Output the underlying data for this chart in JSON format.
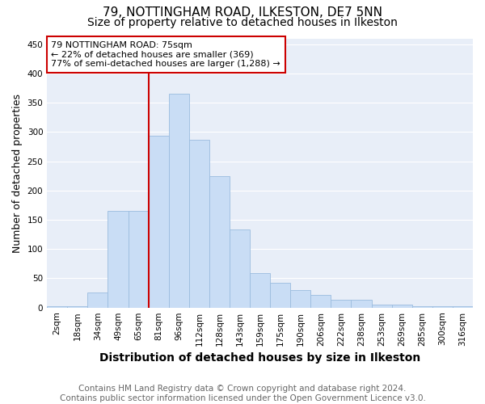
{
  "title": "79, NOTTINGHAM ROAD, ILKESTON, DE7 5NN",
  "subtitle": "Size of property relative to detached houses in Ilkeston",
  "xlabel": "Distribution of detached houses by size in Ilkeston",
  "ylabel": "Number of detached properties",
  "categories": [
    "2sqm",
    "18sqm",
    "34sqm",
    "49sqm",
    "65sqm",
    "81sqm",
    "96sqm",
    "112sqm",
    "128sqm",
    "143sqm",
    "159sqm",
    "175sqm",
    "190sqm",
    "206sqm",
    "222sqm",
    "238sqm",
    "253sqm",
    "269sqm",
    "285sqm",
    "300sqm",
    "316sqm"
  ],
  "values": [
    2,
    2,
    26,
    165,
    165,
    293,
    365,
    287,
    225,
    133,
    59,
    42,
    30,
    22,
    13,
    13,
    5,
    5,
    2,
    2,
    2
  ],
  "bar_color": "#c9ddf5",
  "bar_edge_color": "#9bbcdf",
  "vline_x_index": 4.5,
  "vline_color": "#cc0000",
  "annotation_text": "79 NOTTINGHAM ROAD: 75sqm\n← 22% of detached houses are smaller (369)\n77% of semi-detached houses are larger (1,288) →",
  "annotation_box_color": "#ffffff",
  "annotation_box_edge_color": "#cc0000",
  "ylim": [
    0,
    460
  ],
  "yticks": [
    0,
    50,
    100,
    150,
    200,
    250,
    300,
    350,
    400,
    450
  ],
  "footer_text": "Contains HM Land Registry data © Crown copyright and database right 2024.\nContains public sector information licensed under the Open Government Licence v3.0.",
  "fig_bg_color": "#ffffff",
  "plot_bg_color": "#e8eef8",
  "grid_color": "#ffffff",
  "title_fontsize": 11,
  "title_fontweight": "normal",
  "subtitle_fontsize": 10,
  "subtitle_fontweight": "normal",
  "xlabel_fontsize": 10,
  "ylabel_fontsize": 9,
  "tick_fontsize": 7.5,
  "annotation_fontsize": 8,
  "footer_fontsize": 7.5
}
